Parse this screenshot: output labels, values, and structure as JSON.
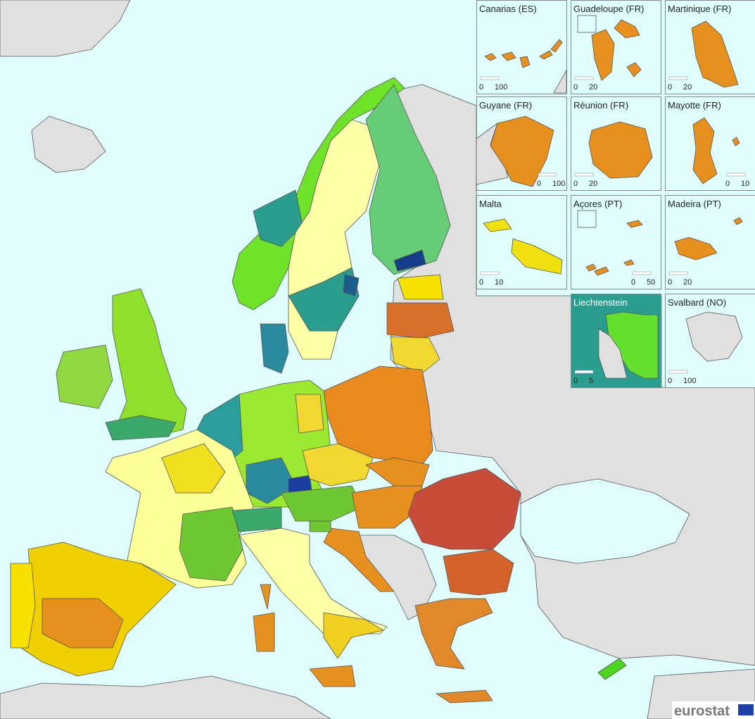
{
  "insets": [
    {
      "title": "Canarias (ES)",
      "scale": [
        0,
        100
      ]
    },
    {
      "title": "Guadeloupe (FR)",
      "scale": [
        0,
        20
      ]
    },
    {
      "title": "Martinique (FR)",
      "scale": [
        0,
        20
      ]
    },
    {
      "title": "Guyane (FR)",
      "scale": [
        0,
        100
      ]
    },
    {
      "title": "Réunion (FR)",
      "scale": [
        0,
        20
      ]
    },
    {
      "title": "Mayotte (FR)",
      "scale": [
        0,
        10
      ]
    },
    {
      "title": "Malta",
      "scale": [
        0,
        10
      ]
    },
    {
      "title": "Açores (PT)",
      "scale": [
        0,
        50
      ]
    },
    {
      "title": "Madeira (PT)",
      "scale": [
        0,
        20
      ]
    },
    {
      "title": "Liechtenstein",
      "scale": [
        0,
        5
      ]
    },
    {
      "title": "Svalbard (NO)",
      "scale": [
        0,
        100
      ]
    }
  ],
  "logo": "eurostat"
}
